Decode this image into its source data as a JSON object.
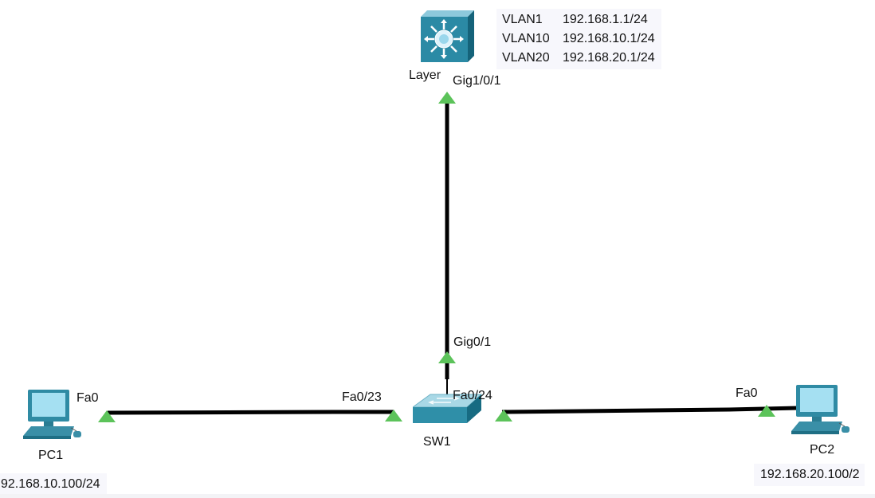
{
  "devices": {
    "layer3": {
      "name": "Layer",
      "port": "Gig1/0/1",
      "vlans": [
        {
          "name": "VLAN1",
          "ip": "192.168.1.1/24"
        },
        {
          "name": "VLAN10",
          "ip": "192.168.10.1/24"
        },
        {
          "name": "VLAN20",
          "ip": "192.168.20.1/24"
        }
      ]
    },
    "sw1": {
      "name": "SW1",
      "port_uplink": "Gig0/1",
      "port_left": "Fa0/23",
      "port_right": "Fa0/24"
    },
    "pc1": {
      "name": "PC1",
      "port": "Fa0",
      "ip": "92.168.10.100/24"
    },
    "pc2": {
      "name": "PC2",
      "port": "Fa0",
      "ip": "192.168.20.100/2"
    }
  },
  "colors": {
    "link": "#000000",
    "link_up_indicator": "#5cc35a",
    "switch_body": "#2f8fa8",
    "switch_top": "#9fd3e3",
    "pc_body": "#3a8fa7",
    "pc_screen": "#9fdcf0",
    "note_background": "#f7f7fc"
  },
  "icons": {
    "layer3": "multilayer-switch-icon",
    "sw1": "workgroup-switch-icon",
    "pc": "desktop-pc-icon",
    "link_status": "link-up-triangle-icon"
  }
}
